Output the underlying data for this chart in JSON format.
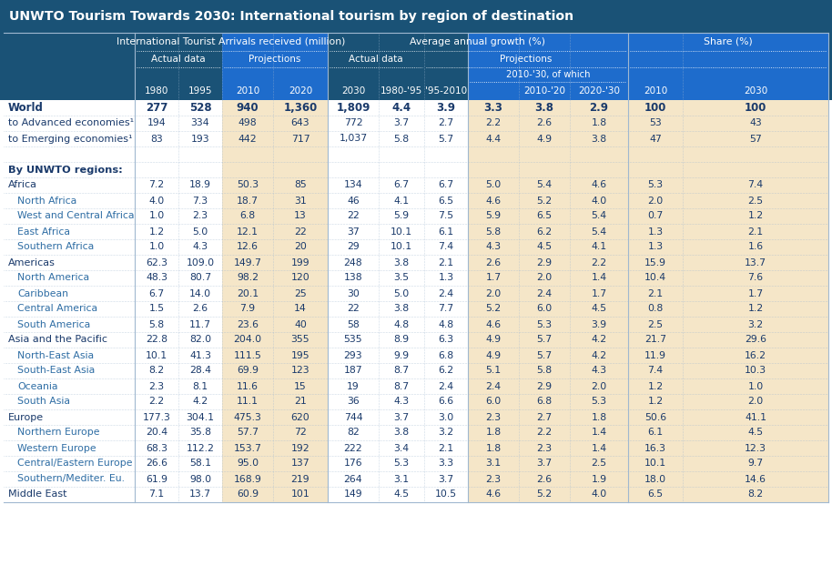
{
  "title": "UNWTO Tourism Towards 2030: International tourism by region of destination",
  "title_bg": "#1a5276",
  "header_bg": "#1a5276",
  "header_color": "#ffffff",
  "proj_bg": "#f5e6c8",
  "white_bg": "#ffffff",
  "text_dark": "#1a3a6b",
  "text_sub": "#2e6da4",
  "sep_color": "#a0b8d0",
  "rows": [
    {
      "label": "World",
      "indent": 0,
      "bold": true,
      "separator_before": false,
      "data": [
        "277",
        "528",
        "940",
        "1,360",
        "1,809",
        "4.4",
        "3.9",
        "3.3",
        "3.8",
        "2.9",
        "100",
        "100"
      ]
    },
    {
      "label": "to Advanced economies¹",
      "indent": 0,
      "bold": false,
      "separator_before": false,
      "data": [
        "194",
        "334",
        "498",
        "643",
        "772",
        "3.7",
        "2.7",
        "2.2",
        "2.6",
        "1.8",
        "53",
        "43"
      ]
    },
    {
      "label": "to Emerging economies¹",
      "indent": 0,
      "bold": false,
      "separator_before": false,
      "data": [
        "83",
        "193",
        "442",
        "717",
        "1,037",
        "5.8",
        "5.7",
        "4.4",
        "4.9",
        "3.8",
        "47",
        "57"
      ]
    },
    {
      "label": "",
      "indent": 0,
      "bold": false,
      "separator_before": false,
      "data": [
        "",
        "",
        "",
        "",
        "",
        "",
        "",
        "",
        "",
        "",
        "",
        ""
      ]
    },
    {
      "label": "By UNWTO regions:",
      "indent": 0,
      "bold": true,
      "separator_before": false,
      "data": [
        "",
        "",
        "",
        "",
        "",
        "",
        "",
        "",
        "",
        "",
        "",
        ""
      ]
    },
    {
      "label": "Africa",
      "indent": 0,
      "bold": false,
      "separator_before": false,
      "data": [
        "7.2",
        "18.9",
        "50.3",
        "85",
        "134",
        "6.7",
        "6.7",
        "5.0",
        "5.4",
        "4.6",
        "5.3",
        "7.4"
      ]
    },
    {
      "label": "North Africa",
      "indent": 1,
      "bold": false,
      "separator_before": false,
      "data": [
        "4.0",
        "7.3",
        "18.7",
        "31",
        "46",
        "4.1",
        "6.5",
        "4.6",
        "5.2",
        "4.0",
        "2.0",
        "2.5"
      ]
    },
    {
      "label": "West and Central Africa",
      "indent": 1,
      "bold": false,
      "separator_before": false,
      "data": [
        "1.0",
        "2.3",
        "6.8",
        "13",
        "22",
        "5.9",
        "7.5",
        "5.9",
        "6.5",
        "5.4",
        "0.7",
        "1.2"
      ]
    },
    {
      "label": "East Africa",
      "indent": 1,
      "bold": false,
      "separator_before": false,
      "data": [
        "1.2",
        "5.0",
        "12.1",
        "22",
        "37",
        "10.1",
        "6.1",
        "5.8",
        "6.2",
        "5.4",
        "1.3",
        "2.1"
      ]
    },
    {
      "label": "Southern Africa",
      "indent": 1,
      "bold": false,
      "separator_before": false,
      "data": [
        "1.0",
        "4.3",
        "12.6",
        "20",
        "29",
        "10.1",
        "7.4",
        "4.3",
        "4.5",
        "4.1",
        "1.3",
        "1.6"
      ]
    },
    {
      "label": "Americas",
      "indent": 0,
      "bold": false,
      "separator_before": false,
      "data": [
        "62.3",
        "109.0",
        "149.7",
        "199",
        "248",
        "3.8",
        "2.1",
        "2.6",
        "2.9",
        "2.2",
        "15.9",
        "13.7"
      ]
    },
    {
      "label": "North America",
      "indent": 1,
      "bold": false,
      "separator_before": false,
      "data": [
        "48.3",
        "80.7",
        "98.2",
        "120",
        "138",
        "3.5",
        "1.3",
        "1.7",
        "2.0",
        "1.4",
        "10.4",
        "7.6"
      ]
    },
    {
      "label": "Caribbean",
      "indent": 1,
      "bold": false,
      "separator_before": false,
      "data": [
        "6.7",
        "14.0",
        "20.1",
        "25",
        "30",
        "5.0",
        "2.4",
        "2.0",
        "2.4",
        "1.7",
        "2.1",
        "1.7"
      ]
    },
    {
      "label": "Central America",
      "indent": 1,
      "bold": false,
      "separator_before": false,
      "data": [
        "1.5",
        "2.6",
        "7.9",
        "14",
        "22",
        "3.8",
        "7.7",
        "5.2",
        "6.0",
        "4.5",
        "0.8",
        "1.2"
      ]
    },
    {
      "label": "South America",
      "indent": 1,
      "bold": false,
      "separator_before": false,
      "data": [
        "5.8",
        "11.7",
        "23.6",
        "40",
        "58",
        "4.8",
        "4.8",
        "4.6",
        "5.3",
        "3.9",
        "2.5",
        "3.2"
      ]
    },
    {
      "label": "Asia and the Pacific",
      "indent": 0,
      "bold": false,
      "separator_before": false,
      "data": [
        "22.8",
        "82.0",
        "204.0",
        "355",
        "535",
        "8.9",
        "6.3",
        "4.9",
        "5.7",
        "4.2",
        "21.7",
        "29.6"
      ]
    },
    {
      "label": "North-East Asia",
      "indent": 1,
      "bold": false,
      "separator_before": false,
      "data": [
        "10.1",
        "41.3",
        "111.5",
        "195",
        "293",
        "9.9",
        "6.8",
        "4.9",
        "5.7",
        "4.2",
        "11.9",
        "16.2"
      ]
    },
    {
      "label": "South-East Asia",
      "indent": 1,
      "bold": false,
      "separator_before": false,
      "data": [
        "8.2",
        "28.4",
        "69.9",
        "123",
        "187",
        "8.7",
        "6.2",
        "5.1",
        "5.8",
        "4.3",
        "7.4",
        "10.3"
      ]
    },
    {
      "label": "Oceania",
      "indent": 1,
      "bold": false,
      "separator_before": false,
      "data": [
        "2.3",
        "8.1",
        "11.6",
        "15",
        "19",
        "8.7",
        "2.4",
        "2.4",
        "2.9",
        "2.0",
        "1.2",
        "1.0"
      ]
    },
    {
      "label": "South Asia",
      "indent": 1,
      "bold": false,
      "separator_before": false,
      "data": [
        "2.2",
        "4.2",
        "11.1",
        "21",
        "36",
        "4.3",
        "6.6",
        "6.0",
        "6.8",
        "5.3",
        "1.2",
        "2.0"
      ]
    },
    {
      "label": "Europe",
      "indent": 0,
      "bold": false,
      "separator_before": false,
      "data": [
        "177.3",
        "304.1",
        "475.3",
        "620",
        "744",
        "3.7",
        "3.0",
        "2.3",
        "2.7",
        "1.8",
        "50.6",
        "41.1"
      ]
    },
    {
      "label": "Northern Europe",
      "indent": 1,
      "bold": false,
      "separator_before": false,
      "data": [
        "20.4",
        "35.8",
        "57.7",
        "72",
        "82",
        "3.8",
        "3.2",
        "1.8",
        "2.2",
        "1.4",
        "6.1",
        "4.5"
      ]
    },
    {
      "label": "Western Europe",
      "indent": 1,
      "bold": false,
      "separator_before": false,
      "data": [
        "68.3",
        "112.2",
        "153.7",
        "192",
        "222",
        "3.4",
        "2.1",
        "1.8",
        "2.3",
        "1.4",
        "16.3",
        "12.3"
      ]
    },
    {
      "label": "Central/Eastern Europe",
      "indent": 1,
      "bold": false,
      "separator_before": false,
      "data": [
        "26.6",
        "58.1",
        "95.0",
        "137",
        "176",
        "5.3",
        "3.3",
        "3.1",
        "3.7",
        "2.5",
        "10.1",
        "9.7"
      ]
    },
    {
      "label": "Southern/Mediter. Eu.",
      "indent": 1,
      "bold": false,
      "separator_before": false,
      "data": [
        "61.9",
        "98.0",
        "168.9",
        "219",
        "264",
        "3.1",
        "3.7",
        "2.3",
        "2.6",
        "1.9",
        "18.0",
        "14.6"
      ]
    },
    {
      "label": "Middle East",
      "indent": 0,
      "bold": false,
      "separator_before": false,
      "data": [
        "7.1",
        "13.7",
        "60.9",
        "101",
        "149",
        "4.5",
        "10.5",
        "4.6",
        "5.2",
        "4.0",
        "6.5",
        "8.2"
      ]
    }
  ]
}
